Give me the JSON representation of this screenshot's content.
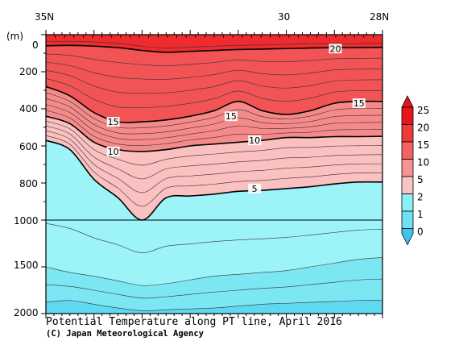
{
  "chart_data": {
    "type": "contour",
    "title": "Potential Temperature along PT line, April 2016",
    "credit": "(C) Japan Meteorological Agency",
    "x_axis": {
      "ticks": [
        "35N",
        "30",
        "28N"
      ]
    },
    "y_axis": {
      "unit_label": "(m)",
      "ticks": [
        "0",
        "200",
        "400",
        "600",
        "800",
        "1000",
        "1500",
        "2000"
      ],
      "range_upper": [
        0,
        1000
      ],
      "range_lower": [
        1000,
        2000
      ]
    },
    "colorbar": {
      "labels": [
        "25",
        "20",
        "15",
        "10",
        "5",
        "2",
        "1",
        "0"
      ],
      "colors": [
        "#e8141c",
        "#f03a3a",
        "#f46464",
        "#f89393",
        "#fbc3c3",
        "#8cf1f5",
        "#6ee2f4",
        "#3cc6ef"
      ]
    },
    "bands": [
      {
        "name": ">20",
        "color": "#ef2b2e"
      },
      {
        "name": "15-20",
        "color": "#f25354"
      },
      {
        "name": "10-15",
        "color": "#f68a8a"
      },
      {
        "name": "5-10",
        "color": "#fbc0c0"
      },
      {
        "name": "2-5",
        "color": "#9cf3f8"
      },
      {
        "name": "1-2",
        "color": "#7de6f3"
      }
    ],
    "bold_contours": [
      {
        "label": "20",
        "depths": [
          60,
          58,
          62,
          70,
          85,
          95,
          90,
          85,
          80,
          78,
          75,
          72,
          70,
          70,
          68
        ]
      },
      {
        "label": "15",
        "depths": [
          280,
          330,
          420,
          470,
          470,
          460,
          440,
          410,
          360,
          410,
          430,
          410,
          370,
          360,
          360
        ]
      },
      {
        "label": "10",
        "depths": [
          440,
          480,
          580,
          620,
          630,
          620,
          600,
          590,
          580,
          570,
          555,
          555,
          550,
          550,
          548
        ]
      },
      {
        "label": "5",
        "depths": [
          570,
          620,
          780,
          880,
          1000,
          880,
          870,
          860,
          845,
          840,
          830,
          820,
          805,
          795,
          795
        ]
      }
    ],
    "contour_labels": [
      {
        "text": "20",
        "x": 0.86,
        "depth": 75
      },
      {
        "text": "15",
        "x": 0.2,
        "depth": 470
      },
      {
        "text": "15",
        "x": 0.55,
        "depth": 440
      },
      {
        "text": "15",
        "x": 0.93,
        "depth": 370
      },
      {
        "text": "10",
        "x": 0.2,
        "depth": 630
      },
      {
        "text": "10",
        "x": 0.62,
        "depth": 570
      },
      {
        "text": "5",
        "x": 0.62,
        "depth": 830
      }
    ]
  }
}
